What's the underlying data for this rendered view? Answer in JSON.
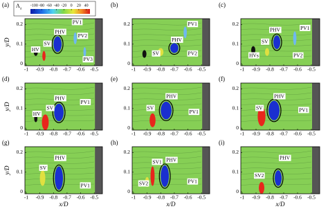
{
  "colorbar": {
    "symbol": "Λ",
    "subscript": "z",
    "lim": [
      -110,
      50
    ],
    "ticks": [
      -100,
      -80,
      -60,
      -40,
      -20,
      0,
      20,
      40
    ]
  },
  "axes": {
    "x_label": "x/D",
    "y_label": "y/D",
    "xlim": [
      -1.01,
      -0.44
    ],
    "ylim": [
      -0.01,
      0.23
    ],
    "xticks": [
      -1,
      -0.9,
      -0.8,
      -0.7,
      -0.6,
      -0.5
    ],
    "yticks": [
      0,
      0.1,
      0.2
    ]
  },
  "panels": [
    {
      "label": "(a)",
      "annotations": [
        "HV",
        "SV",
        "PHV",
        "PV1",
        "PV2",
        "PV3"
      ]
    },
    {
      "label": "(b)",
      "annotations": [
        "PHV",
        "SV",
        "PV1",
        "PV2"
      ]
    },
    {
      "label": "(c)",
      "annotations": [
        "HVs",
        "SV",
        "PHV",
        "PV1",
        "PV2"
      ]
    },
    {
      "label": "(d)",
      "annotations": [
        "HV",
        "SV",
        "PHV",
        "PV1"
      ]
    },
    {
      "label": "(e)",
      "annotations": [
        "SV",
        "PHV",
        "PV1"
      ]
    },
    {
      "label": "(f)",
      "annotations": [
        "SV",
        "PHV",
        "PV1"
      ]
    },
    {
      "label": "(g)",
      "annotations": [
        "SV",
        "PHV",
        "PV1"
      ]
    },
    {
      "label": "(h)",
      "annotations": [
        "SV1",
        "SV2",
        "PHV",
        "PV1"
      ]
    },
    {
      "label": "(i)",
      "annotations": [
        "PHV",
        "SV2"
      ]
    }
  ]
}
